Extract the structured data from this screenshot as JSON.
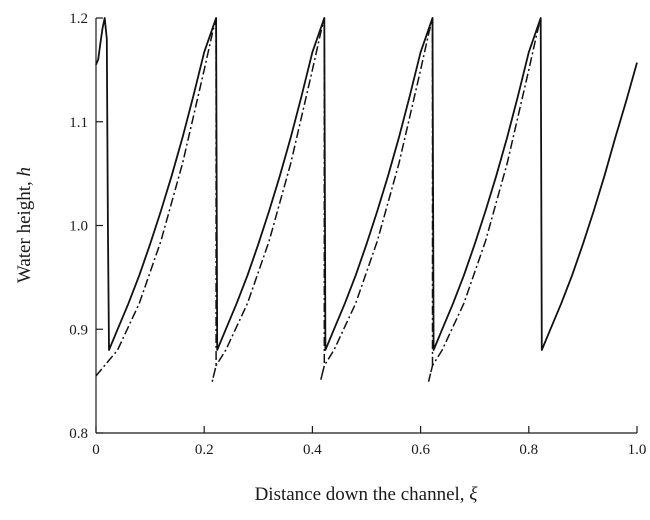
{
  "chart_data": {
    "type": "line",
    "title": "",
    "xlabel": "Distance down the channel, ",
    "xlabel_symbol": "ξ",
    "ylabel": "Water height, ",
    "ylabel_symbol": "h",
    "xlim": [
      0,
      1.0
    ],
    "ylim": [
      0.8,
      1.2
    ],
    "xticks": [
      "0",
      "0.2",
      "0.4",
      "0.6",
      "0.8",
      "1.0"
    ],
    "yticks": [
      "0.8",
      "0.9",
      "1.0",
      "1.1",
      "1.2"
    ],
    "grid": false,
    "series": [
      {
        "style": "solid",
        "color": "#111111",
        "x": [
          0.0,
          0.004,
          0.008,
          0.012,
          0.016,
          0.02,
          0.022,
          0.024,
          0.04,
          0.06,
          0.08,
          0.1,
          0.12,
          0.14,
          0.16,
          0.18,
          0.2,
          0.222,
          0.224,
          0.24,
          0.26,
          0.28,
          0.3,
          0.32,
          0.34,
          0.36,
          0.38,
          0.4,
          0.422,
          0.424,
          0.44,
          0.46,
          0.48,
          0.5,
          0.52,
          0.54,
          0.56,
          0.58,
          0.6,
          0.622,
          0.624,
          0.64,
          0.66,
          0.68,
          0.7,
          0.72,
          0.74,
          0.76,
          0.78,
          0.8,
          0.822,
          0.824,
          0.84,
          0.86,
          0.88,
          0.9,
          0.92,
          0.94,
          0.96,
          0.98,
          1.0
        ],
        "y": [
          1.155,
          1.16,
          1.175,
          1.19,
          1.2,
          1.18,
          1.0,
          0.88,
          0.9,
          0.925,
          0.952,
          0.982,
          1.014,
          1.048,
          1.085,
          1.125,
          1.167,
          1.2,
          0.88,
          0.9,
          0.925,
          0.952,
          0.982,
          1.014,
          1.048,
          1.085,
          1.125,
          1.167,
          1.2,
          0.88,
          0.9,
          0.925,
          0.952,
          0.982,
          1.014,
          1.048,
          1.085,
          1.125,
          1.167,
          1.2,
          0.88,
          0.9,
          0.925,
          0.952,
          0.982,
          1.014,
          1.048,
          1.085,
          1.125,
          1.167,
          1.2,
          0.88,
          0.9,
          0.925,
          0.952,
          0.982,
          1.014,
          1.048,
          1.085,
          1.12,
          1.157
        ]
      },
      {
        "style": "dash-dot",
        "color": "#111111",
        "x": [
          0.0,
          0.04,
          0.08,
          0.12,
          0.16,
          0.2,
          0.215,
          0.222,
          0.222,
          0.222,
          0.215,
          0.222,
          0.24,
          0.28,
          0.32,
          0.36,
          0.4,
          0.415,
          0.422,
          0.422,
          0.422,
          0.415,
          0.422,
          0.44,
          0.48,
          0.52,
          0.56,
          0.6,
          0.615,
          0.622,
          0.622,
          0.622,
          0.615,
          0.622,
          0.64,
          0.68,
          0.72,
          0.76,
          0.8,
          0.815,
          0.822
        ],
        "y": [
          0.855,
          0.88,
          0.925,
          0.985,
          1.06,
          1.15,
          1.185,
          1.2,
          0.865,
          0.865,
          0.85,
          0.865,
          0.88,
          0.925,
          0.985,
          1.06,
          1.15,
          1.185,
          1.2,
          0.865,
          0.865,
          0.85,
          0.865,
          0.88,
          0.925,
          0.985,
          1.06,
          1.15,
          1.185,
          1.2,
          0.865,
          0.865,
          0.85,
          0.865,
          0.88,
          0.925,
          0.985,
          1.06,
          1.15,
          1.185,
          1.2
        ]
      }
    ]
  }
}
